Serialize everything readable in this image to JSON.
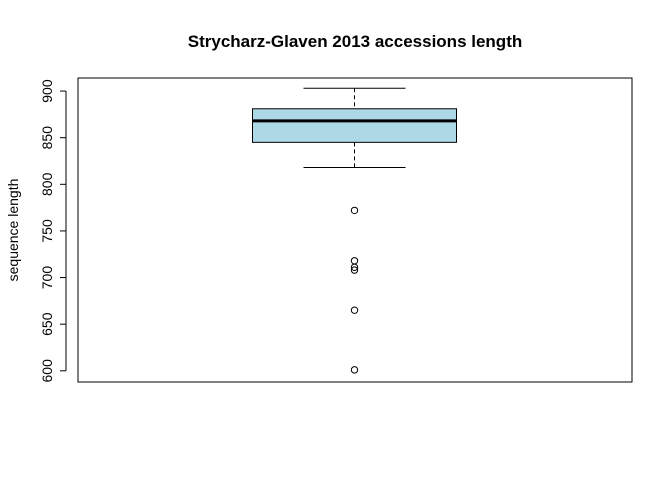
{
  "chart_data": {
    "type": "boxplot",
    "title": "Strycharz-Glaven 2013 accessions length",
    "xlabel": "",
    "ylabel": "sequence length",
    "ylim": [
      588,
      914
    ],
    "y_ticks": [
      "600",
      "650",
      "700",
      "750",
      "800",
      "850",
      "900"
    ],
    "grid": false,
    "legend": "none",
    "box": {
      "whisker_low": 818,
      "q1": 845,
      "median": 868,
      "q3": 881,
      "whisker_high": 903
    },
    "outliers": [
      772,
      718,
      711,
      708,
      665,
      601
    ],
    "colors": {
      "box_fill": "#add8e6",
      "stroke": "#000000"
    }
  }
}
